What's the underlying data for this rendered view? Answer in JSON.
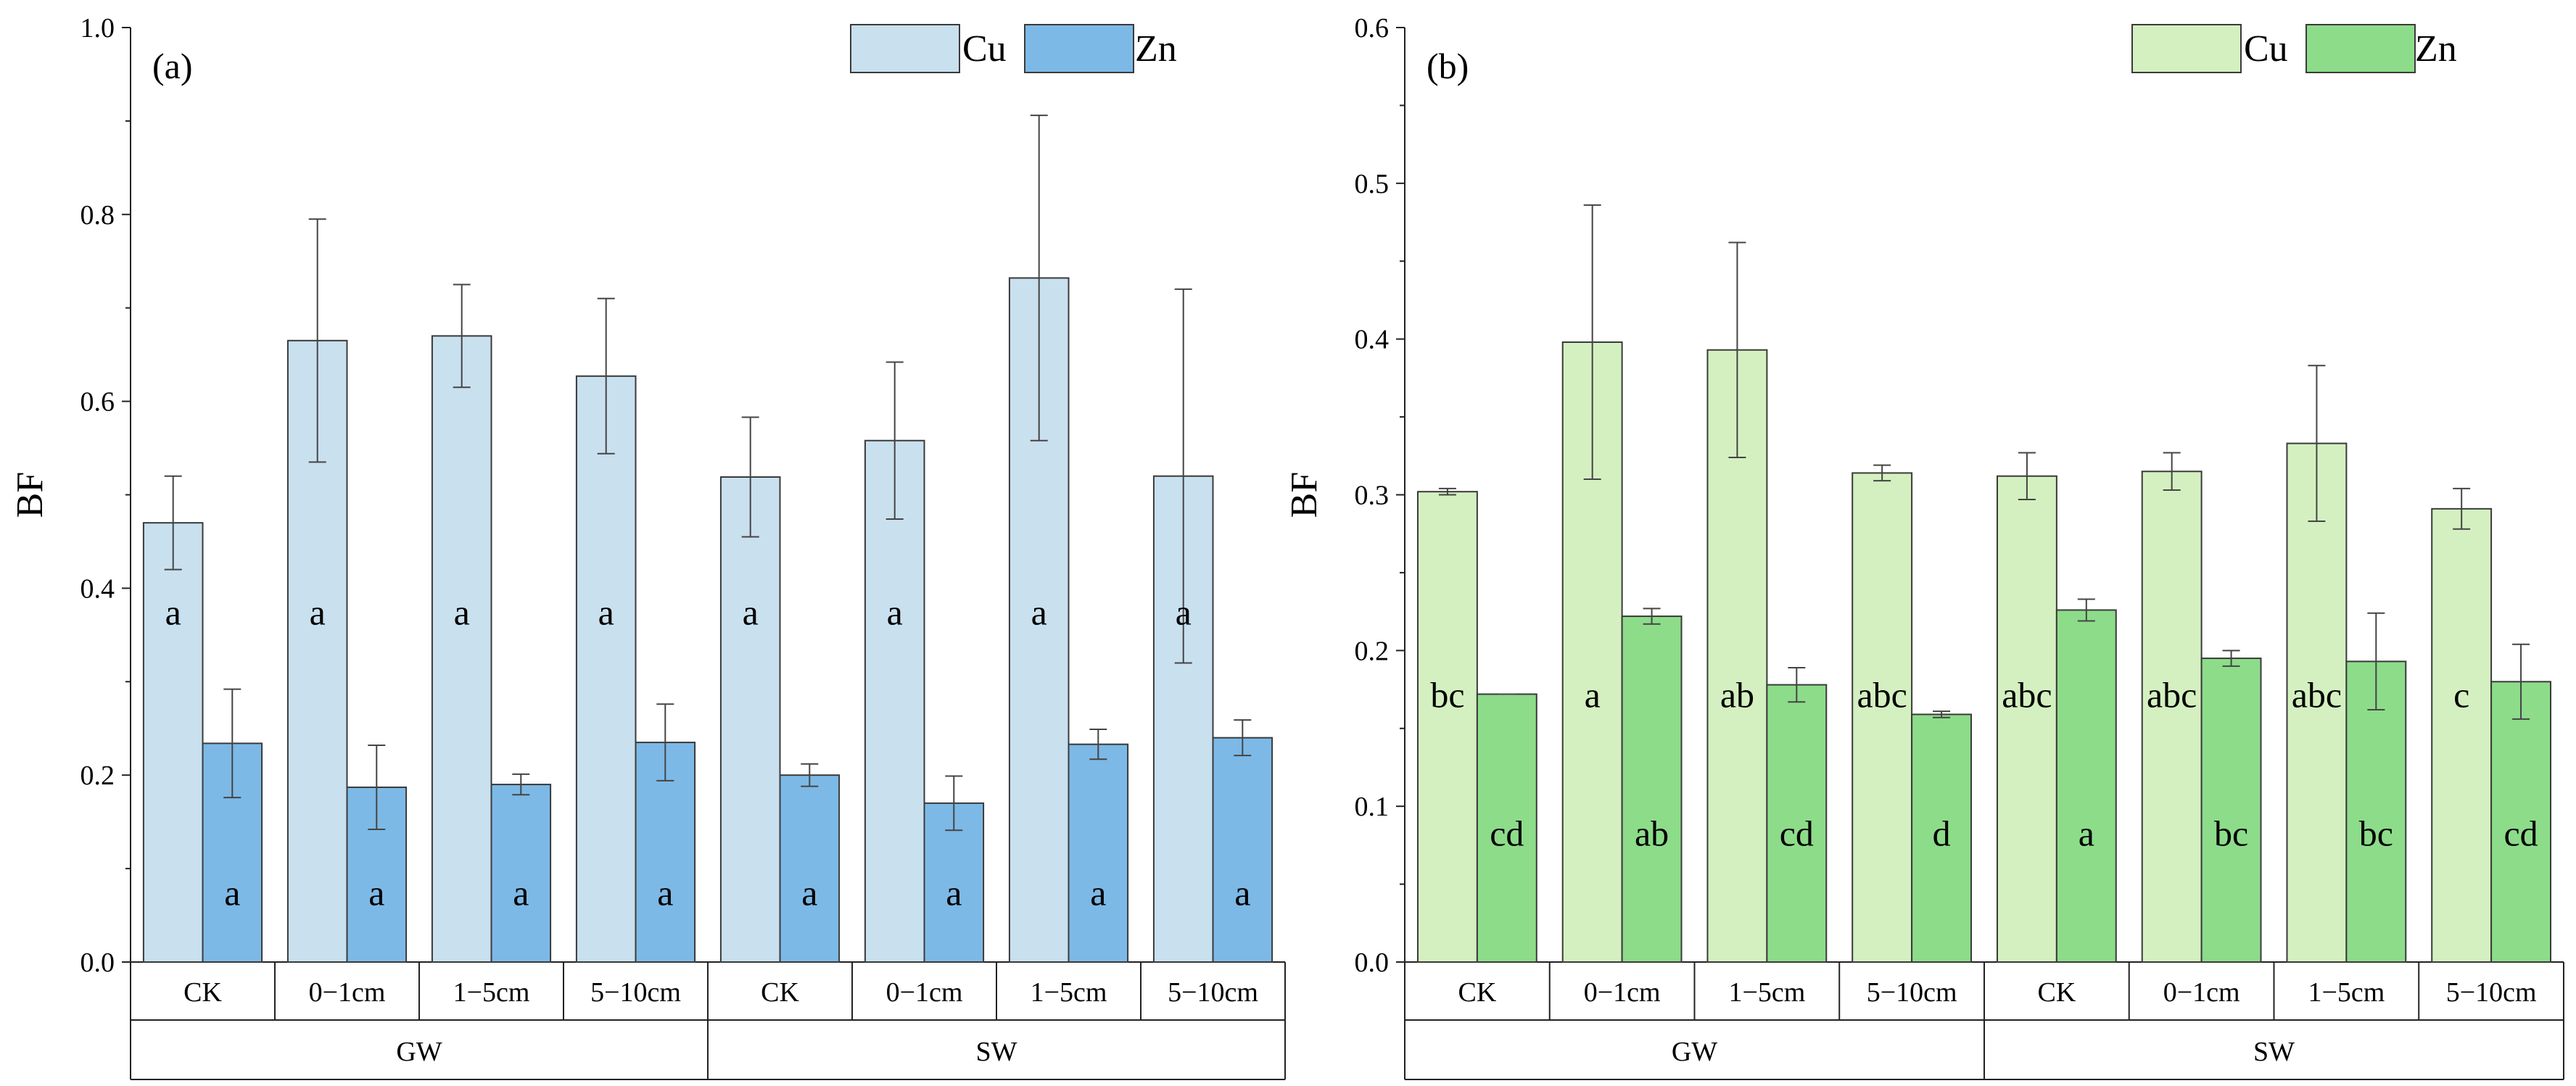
{
  "colors": {
    "a_cu": "#c9e0ef",
    "a_zn": "#7db9e6",
    "b_cu": "#d4f0c0",
    "b_zn": "#8ddc8a",
    "edge": "#3a3a3a",
    "err": "#444444"
  },
  "chart_data": [
    {
      "type": "bar",
      "panel_label": "(a)",
      "ylabel": "BF",
      "ylim": [
        0,
        1.0
      ],
      "yticks": [
        "0.0",
        "0.2",
        "0.4",
        "0.6",
        "0.8",
        "1.0"
      ],
      "categories": [
        "CK",
        "0−1cm",
        "1−5cm",
        "5−10cm",
        "CK",
        "0−1cm",
        "1−5cm",
        "5−10cm"
      ],
      "groups": [
        {
          "name": "GW",
          "span": 4
        },
        {
          "name": "SW",
          "span": 4
        }
      ],
      "legend": {
        "position": "top-right",
        "entries": [
          "Cu",
          "Zn"
        ]
      },
      "series": [
        {
          "name": "Cu",
          "values": [
            0.47,
            0.665,
            0.67,
            0.627,
            0.519,
            0.558,
            0.732,
            0.52
          ],
          "errors": [
            0.05,
            0.13,
            0.055,
            0.083,
            0.064,
            0.084,
            0.174,
            0.2
          ],
          "letters": [
            "a",
            "a",
            "a",
            "a",
            "a",
            "a",
            "a",
            "a"
          ]
        },
        {
          "name": "Zn",
          "values": [
            0.234,
            0.187,
            0.19,
            0.235,
            0.2,
            0.17,
            0.233,
            0.24
          ],
          "errors": [
            0.058,
            0.045,
            0.011,
            0.041,
            0.012,
            0.029,
            0.016,
            0.019
          ],
          "letters": [
            "a",
            "a",
            "a",
            "a",
            "a",
            "a",
            "a",
            "a"
          ]
        }
      ]
    },
    {
      "type": "bar",
      "panel_label": "(b)",
      "ylabel": "BF",
      "ylim": [
        0,
        0.6
      ],
      "yticks": [
        "0.0",
        "0.1",
        "0.2",
        "0.3",
        "0.4",
        "0.5",
        "0.6"
      ],
      "categories": [
        "CK",
        "0−1cm",
        "1−5cm",
        "5−10cm",
        "CK",
        "0−1cm",
        "1−5cm",
        "5−10cm"
      ],
      "groups": [
        {
          "name": "GW",
          "span": 4
        },
        {
          "name": "SW",
          "span": 4
        }
      ],
      "legend": {
        "position": "top-right",
        "entries": [
          "Cu",
          "Zn"
        ]
      },
      "series": [
        {
          "name": "Cu",
          "values": [
            0.302,
            0.398,
            0.393,
            0.314,
            0.312,
            0.315,
            0.333,
            0.291
          ],
          "errors": [
            0.002,
            0.088,
            0.069,
            0.005,
            0.015,
            0.012,
            0.05,
            0.013
          ],
          "letters": [
            "bc",
            "a",
            "ab",
            "abc",
            "abc",
            "abc",
            "abc",
            "c"
          ]
        },
        {
          "name": "Zn",
          "values": [
            0.172,
            0.222,
            0.178,
            0.159,
            0.226,
            0.195,
            0.193,
            0.18
          ],
          "errors": [
            0.0,
            0.005,
            0.011,
            0.002,
            0.007,
            0.005,
            0.031,
            0.024
          ],
          "letters": [
            "cd",
            "ab",
            "cd",
            "d",
            "a",
            "bc",
            "bc",
            "cd"
          ]
        }
      ]
    }
  ]
}
